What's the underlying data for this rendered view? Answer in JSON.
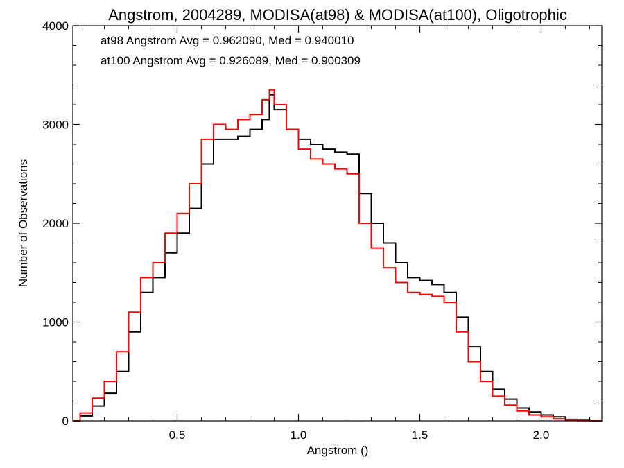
{
  "chart_data": {
    "type": "line",
    "title": "Angstrom, 2004289, MODISA(at98) & MODISA(at100), Oligotrophic",
    "xlabel": "Angstrom ()",
    "ylabel": "Number of Observations",
    "xlim": [
      0.07,
      2.25
    ],
    "ylim": [
      0,
      4000
    ],
    "xticks": [
      0.5,
      1.0,
      1.5,
      2.0
    ],
    "xtick_labels": [
      "0.5",
      "1.0",
      "1.5",
      "2.0"
    ],
    "yticks": [
      0,
      1000,
      2000,
      3000,
      4000
    ],
    "ytick_labels": [
      "0",
      "1000",
      "2000",
      "3000",
      "4000"
    ],
    "grid": false,
    "annotations": [
      {
        "text": "at98 Angstrom Avg = 0.962090, Med = 0.940010",
        "color": "#000000"
      },
      {
        "text": "at100 Angstrom Avg = 0.926089, Med = 0.900309",
        "color": "#ff0000"
      }
    ],
    "series": [
      {
        "color": "#000000",
        "x": [
          0.07,
          0.1,
          0.15,
          0.2,
          0.25,
          0.3,
          0.35,
          0.4,
          0.45,
          0.5,
          0.55,
          0.6,
          0.65,
          0.7,
          0.75,
          0.8,
          0.85,
          0.88,
          0.9,
          0.95,
          1.0,
          1.05,
          1.1,
          1.15,
          1.2,
          1.25,
          1.3,
          1.35,
          1.4,
          1.45,
          1.5,
          1.55,
          1.6,
          1.65,
          1.7,
          1.75,
          1.8,
          1.85,
          1.9,
          1.95,
          2.0,
          2.05,
          2.1,
          2.15,
          2.2,
          2.25
        ],
        "y": [
          0,
          50,
          150,
          280,
          500,
          900,
          1300,
          1450,
          1700,
          1900,
          2150,
          2600,
          2850,
          2850,
          2880,
          2950,
          3050,
          3300,
          3150,
          2950,
          2850,
          2800,
          2750,
          2720,
          2700,
          2300,
          2000,
          1800,
          1600,
          1450,
          1420,
          1380,
          1300,
          1050,
          750,
          500,
          320,
          220,
          130,
          90,
          60,
          40,
          15,
          5,
          0,
          0
        ]
      },
      {
        "color": "#ff0000",
        "x": [
          0.07,
          0.1,
          0.15,
          0.2,
          0.25,
          0.3,
          0.35,
          0.4,
          0.45,
          0.5,
          0.55,
          0.6,
          0.65,
          0.7,
          0.75,
          0.8,
          0.85,
          0.88,
          0.9,
          0.95,
          1.0,
          1.05,
          1.1,
          1.15,
          1.2,
          1.25,
          1.3,
          1.35,
          1.4,
          1.45,
          1.5,
          1.55,
          1.6,
          1.65,
          1.7,
          1.75,
          1.8,
          1.85,
          1.9,
          1.95,
          2.0,
          2.05,
          2.1,
          2.15,
          2.2,
          2.25
        ],
        "y": [
          0,
          80,
          230,
          400,
          700,
          1100,
          1450,
          1600,
          1900,
          2100,
          2400,
          2850,
          3000,
          2950,
          3050,
          3100,
          3250,
          3350,
          3200,
          2950,
          2750,
          2650,
          2600,
          2550,
          2500,
          2000,
          1750,
          1550,
          1400,
          1300,
          1280,
          1260,
          1200,
          900,
          600,
          400,
          250,
          160,
          100,
          60,
          40,
          20,
          8,
          2,
          0,
          0
        ]
      }
    ]
  }
}
